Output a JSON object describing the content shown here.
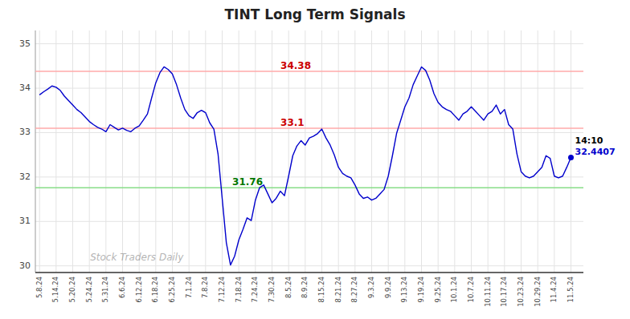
{
  "chart_data": {
    "type": "line",
    "title": "TINT Long Term Signals",
    "categories": [
      "5.8.24",
      null,
      null,
      null,
      "5.14.24",
      null,
      null,
      null,
      "5.20.24",
      null,
      null,
      null,
      "5.24.24",
      null,
      null,
      null,
      "5.31.24",
      null,
      null,
      null,
      "6.6.24",
      null,
      null,
      null,
      "6.12.24",
      null,
      null,
      null,
      "6.18.24",
      null,
      null,
      null,
      "6.25.24",
      null,
      null,
      null,
      "7.1.24",
      null,
      null,
      null,
      "7.8.24",
      null,
      null,
      null,
      "7.12.24",
      null,
      null,
      null,
      "7.18.24",
      null,
      null,
      null,
      "7.24.24",
      null,
      null,
      null,
      "7.30.24",
      null,
      null,
      null,
      "8.5.24",
      null,
      null,
      null,
      "8.9.24",
      null,
      null,
      null,
      "8.15.24",
      null,
      null,
      null,
      "8.21.24",
      null,
      null,
      null,
      "8.27.24",
      null,
      null,
      null,
      "9.3.24",
      null,
      null,
      null,
      "9.9.24",
      null,
      null,
      null,
      "9.13.24",
      null,
      null,
      null,
      "9.19.24",
      null,
      null,
      null,
      "9.25.24",
      null,
      null,
      null,
      "10.1.24",
      null,
      null,
      null,
      "10.7.24",
      null,
      null,
      null,
      "10.11.24",
      null,
      null,
      null,
      "10.17.24",
      null,
      null,
      null,
      "10.23.24",
      null,
      null,
      null,
      "10.29.24",
      null,
      null,
      null,
      "11.4.24",
      null,
      null,
      null,
      "11.5.24"
    ],
    "values": [
      33.85,
      33.92,
      33.98,
      34.05,
      34.02,
      33.95,
      33.82,
      33.72,
      33.62,
      33.52,
      33.45,
      33.35,
      33.25,
      33.18,
      33.12,
      33.08,
      33.02,
      33.18,
      33.12,
      33.06,
      33.1,
      33.05,
      33.02,
      33.1,
      33.15,
      33.28,
      33.42,
      33.78,
      34.12,
      34.35,
      34.48,
      34.42,
      34.32,
      34.08,
      33.78,
      33.52,
      33.38,
      33.32,
      33.45,
      33.5,
      33.45,
      33.22,
      33.08,
      32.52,
      31.52,
      30.52,
      30.02,
      30.22,
      30.58,
      30.82,
      31.08,
      31.02,
      31.48,
      31.76,
      31.82,
      31.62,
      31.42,
      31.52,
      31.68,
      31.58,
      32.02,
      32.48,
      32.7,
      32.82,
      32.72,
      32.88,
      32.92,
      32.98,
      33.08,
      32.88,
      32.72,
      32.5,
      32.22,
      32.08,
      32.02,
      31.98,
      31.82,
      31.62,
      31.52,
      31.55,
      31.48,
      31.52,
      31.62,
      31.72,
      32.02,
      32.48,
      32.98,
      33.28,
      33.58,
      33.78,
      34.08,
      34.28,
      34.48,
      34.4,
      34.18,
      33.88,
      33.68,
      33.58,
      33.52,
      33.48,
      33.38,
      33.28,
      33.42,
      33.48,
      33.58,
      33.48,
      33.38,
      33.28,
      33.42,
      33.48,
      33.62,
      33.42,
      33.52,
      33.18,
      33.08,
      32.52,
      32.12,
      32.02,
      31.98,
      32.02,
      32.12,
      32.22,
      32.48,
      32.42,
      32.02,
      31.98,
      32.02,
      32.22,
      32.4407
    ],
    "color": "#0000cc",
    "ylim": [
      29.85,
      35.3
    ],
    "yticks": [
      30,
      31,
      32,
      33,
      34,
      35
    ],
    "grid": true,
    "reference_lines": [
      {
        "value": 34.38,
        "label": "34.38",
        "color": "#ffaaaa",
        "label_color": "#cc0000"
      },
      {
        "value": 33.1,
        "label": "33.1",
        "color": "#ffaaaa",
        "label_color": "#cc0000"
      },
      {
        "value": 31.76,
        "label": "31.76",
        "color": "#88dd88",
        "label_color": "#007700"
      }
    ],
    "last_point_label": "14:10",
    "watermark": "Stock Traders Daily"
  }
}
